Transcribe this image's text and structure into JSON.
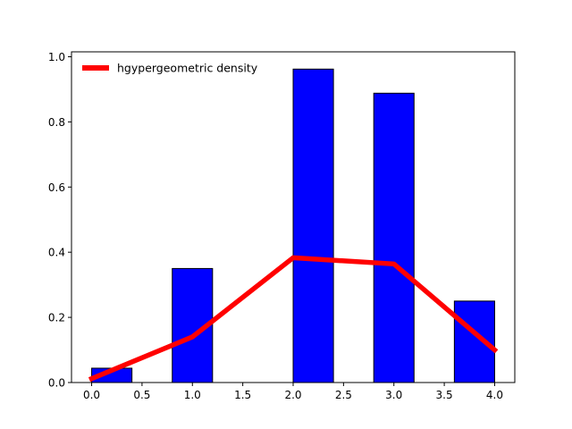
{
  "chart_data": {
    "type": "bar",
    "title": "",
    "xlabel": "",
    "ylabel": "",
    "xlim": [
      -0.2,
      4.2
    ],
    "ylim": [
      0.0,
      1.015
    ],
    "grid": false,
    "legend_position": "top-left",
    "xticks": [
      "0.0",
      "0.5",
      "1.0",
      "1.5",
      "2.0",
      "2.5",
      "3.0",
      "3.5",
      "4.0"
    ],
    "yticks": [
      "0.0",
      "0.2",
      "0.4",
      "0.6",
      "0.8",
      "1.0"
    ],
    "bars": {
      "bin_width": 0.4,
      "x_start": [
        0.0,
        0.8,
        2.0,
        2.8,
        3.6
      ],
      "values": [
        0.044,
        0.35,
        0.962,
        0.888,
        0.25
      ],
      "fill_color": "#0000ff",
      "edge_color": "#000000"
    },
    "series": [
      {
        "name": "hgypergeometric density",
        "type": "line",
        "color": "#ff0000",
        "x": [
          0,
          1,
          2,
          3,
          4
        ],
        "y": [
          0.012,
          0.14,
          0.383,
          0.364,
          0.1
        ]
      }
    ]
  }
}
